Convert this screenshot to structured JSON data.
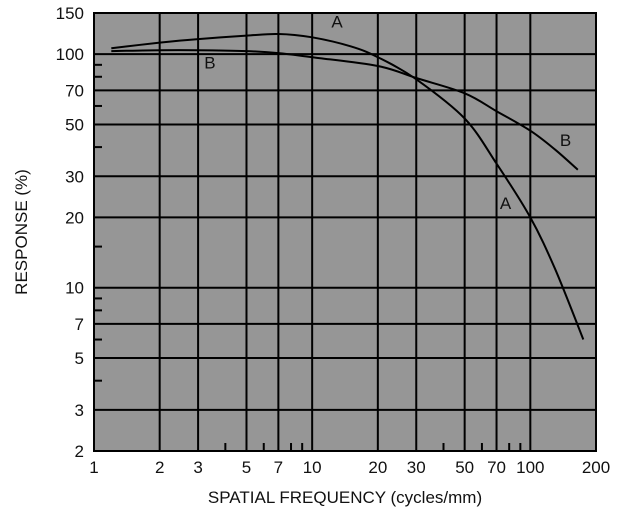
{
  "chart_data": {
    "type": "line",
    "xlabel": "SPATIAL FREQUENCY (cycles/mm)",
    "ylabel": "RESPONSE (%)",
    "x_scale": "log",
    "y_scale": "log",
    "xlim": [
      1,
      200
    ],
    "ylim": [
      2,
      150
    ],
    "x_tick_labels": [
      "1",
      "2",
      "3",
      "5",
      "7",
      "10",
      "20",
      "30",
      "50",
      "70",
      "100",
      "200"
    ],
    "y_tick_labels": [
      "2",
      "3",
      "5",
      "7",
      "10",
      "20",
      "30",
      "50",
      "70",
      "100",
      "150"
    ],
    "grid": true,
    "colors": {
      "plot_background": "#969696",
      "grid": "#000000",
      "series": "#000000"
    },
    "series": [
      {
        "name": "A",
        "points": [
          {
            "x": 1.2,
            "y": 106
          },
          {
            "x": 2,
            "y": 112
          },
          {
            "x": 3,
            "y": 116
          },
          {
            "x": 5,
            "y": 120
          },
          {
            "x": 7,
            "y": 122
          },
          {
            "x": 10,
            "y": 118
          },
          {
            "x": 15,
            "y": 108
          },
          {
            "x": 20,
            "y": 97
          },
          {
            "x": 30,
            "y": 78
          },
          {
            "x": 50,
            "y": 53
          },
          {
            "x": 70,
            "y": 34
          },
          {
            "x": 100,
            "y": 20
          },
          {
            "x": 130,
            "y": 12
          },
          {
            "x": 175,
            "y": 6
          }
        ]
      },
      {
        "name": "B",
        "points": [
          {
            "x": 1.2,
            "y": 103
          },
          {
            "x": 2,
            "y": 104
          },
          {
            "x": 3,
            "y": 104
          },
          {
            "x": 5,
            "y": 103
          },
          {
            "x": 7,
            "y": 101
          },
          {
            "x": 10,
            "y": 97
          },
          {
            "x": 20,
            "y": 89
          },
          {
            "x": 30,
            "y": 79
          },
          {
            "x": 50,
            "y": 68
          },
          {
            "x": 70,
            "y": 57
          },
          {
            "x": 100,
            "y": 47
          },
          {
            "x": 130,
            "y": 39
          },
          {
            "x": 165,
            "y": 32
          }
        ]
      }
    ],
    "annotations": [
      {
        "text": "A",
        "x": 13,
        "y": 138
      },
      {
        "text": "B",
        "x": 3.4,
        "y": 92
      },
      {
        "text": "A",
        "x": 77,
        "y": 23
      },
      {
        "text": "B",
        "x": 145,
        "y": 43
      }
    ]
  }
}
